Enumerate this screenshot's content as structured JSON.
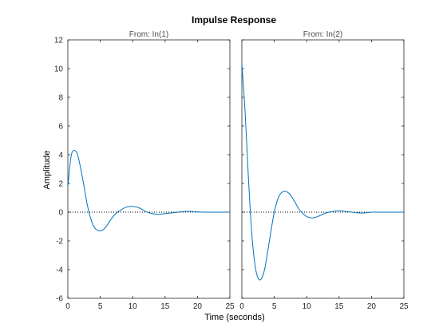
{
  "chart_data": {
    "type": "line",
    "title": "Impulse Response",
    "xlabel": "Time (seconds)",
    "ylabel": "Amplitude",
    "xlim": [
      0,
      25
    ],
    "ylim": [
      -6,
      12
    ],
    "xticks": [
      "0",
      "5",
      "10",
      "15",
      "20",
      "25"
    ],
    "yticks": [
      "-6",
      "-4",
      "-2",
      "0",
      "2",
      "4",
      "6",
      "8",
      "10",
      "12"
    ],
    "zero_line": true,
    "line_color": "#0072bd",
    "panels": [
      {
        "subtitle": "From: In(1)",
        "x": [
          0,
          0.5,
          1,
          1.5,
          2,
          2.5,
          3,
          3.5,
          4,
          4.5,
          5,
          5.5,
          6,
          6.5,
          7,
          7.5,
          8,
          9,
          10,
          11,
          12,
          13,
          14,
          15,
          16,
          17,
          18,
          19,
          20,
          21,
          22,
          23,
          24,
          25
        ],
        "values": [
          1.8,
          3.9,
          4.3,
          4.0,
          3.0,
          1.8,
          0.5,
          -0.4,
          -1.0,
          -1.25,
          -1.3,
          -1.2,
          -0.95,
          -0.6,
          -0.3,
          -0.05,
          0.1,
          0.35,
          0.4,
          0.3,
          0.05,
          -0.1,
          -0.15,
          -0.1,
          -0.05,
          0.0,
          0.05,
          0.05,
          0.02,
          0.0,
          0.0,
          0.0,
          0.0,
          0.0
        ]
      },
      {
        "subtitle": "From: In(2)",
        "x": [
          0,
          0.5,
          1,
          1.5,
          2,
          2.5,
          3,
          3.5,
          4,
          4.5,
          5,
          5.5,
          6,
          6.5,
          7,
          7.5,
          8,
          8.5,
          9,
          10,
          11,
          12,
          13,
          14,
          15,
          16,
          17,
          18,
          19,
          20,
          21,
          22,
          23,
          24,
          25
        ],
        "values": [
          10.3,
          7.0,
          2.5,
          -1.3,
          -3.6,
          -4.6,
          -4.65,
          -4.0,
          -2.7,
          -1.3,
          0.0,
          0.85,
          1.3,
          1.45,
          1.4,
          1.2,
          0.85,
          0.45,
          0.1,
          -0.3,
          -0.4,
          -0.25,
          -0.05,
          0.05,
          0.1,
          0.05,
          0.0,
          -0.05,
          -0.05,
          0.0,
          0.0,
          0.0,
          0.0,
          0.0,
          0.0
        ]
      }
    ]
  }
}
